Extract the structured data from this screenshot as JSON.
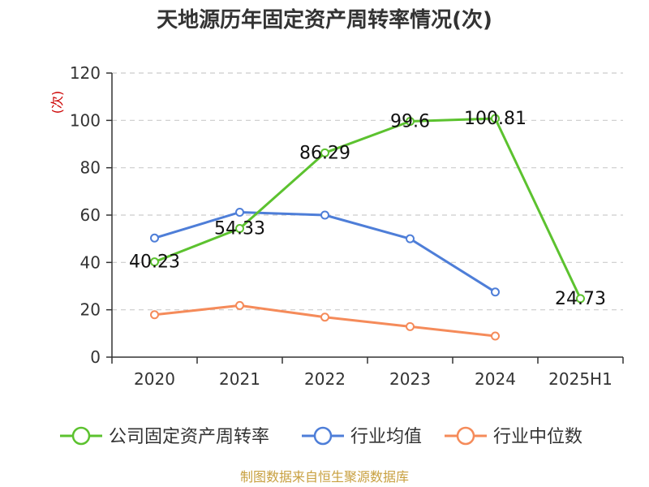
{
  "chart_data": {
    "type": "line",
    "title": "天地源历年固定资产周转率情况(次)",
    "ylabel": "(次)",
    "categories": [
      "2020",
      "2021",
      "2022",
      "2023",
      "2024",
      "2025H1"
    ],
    "ylim": [
      0,
      120
    ],
    "yticks": [
      0,
      20,
      40,
      60,
      80,
      100,
      120
    ],
    "grid": true,
    "legend_position": "bottom",
    "series": [
      {
        "name": "公司固定资产周转率",
        "color": "#5cc22f",
        "values": [
          40.23,
          54.33,
          86.29,
          99.6,
          100.81,
          24.73
        ],
        "labels": [
          "40.23",
          "54.33",
          "86.29",
          "99.6",
          "100.81",
          "24.73"
        ]
      },
      {
        "name": "行业均值",
        "color": "#4e7ed8",
        "values": [
          50.3,
          61.2,
          60.0,
          50.0,
          27.5,
          null
        ]
      },
      {
        "name": "行业中位数",
        "color": "#f58b5a",
        "values": [
          17.9,
          21.8,
          16.9,
          12.9,
          8.9,
          null
        ]
      }
    ],
    "source": "制图数据来自恒生聚源数据库"
  }
}
